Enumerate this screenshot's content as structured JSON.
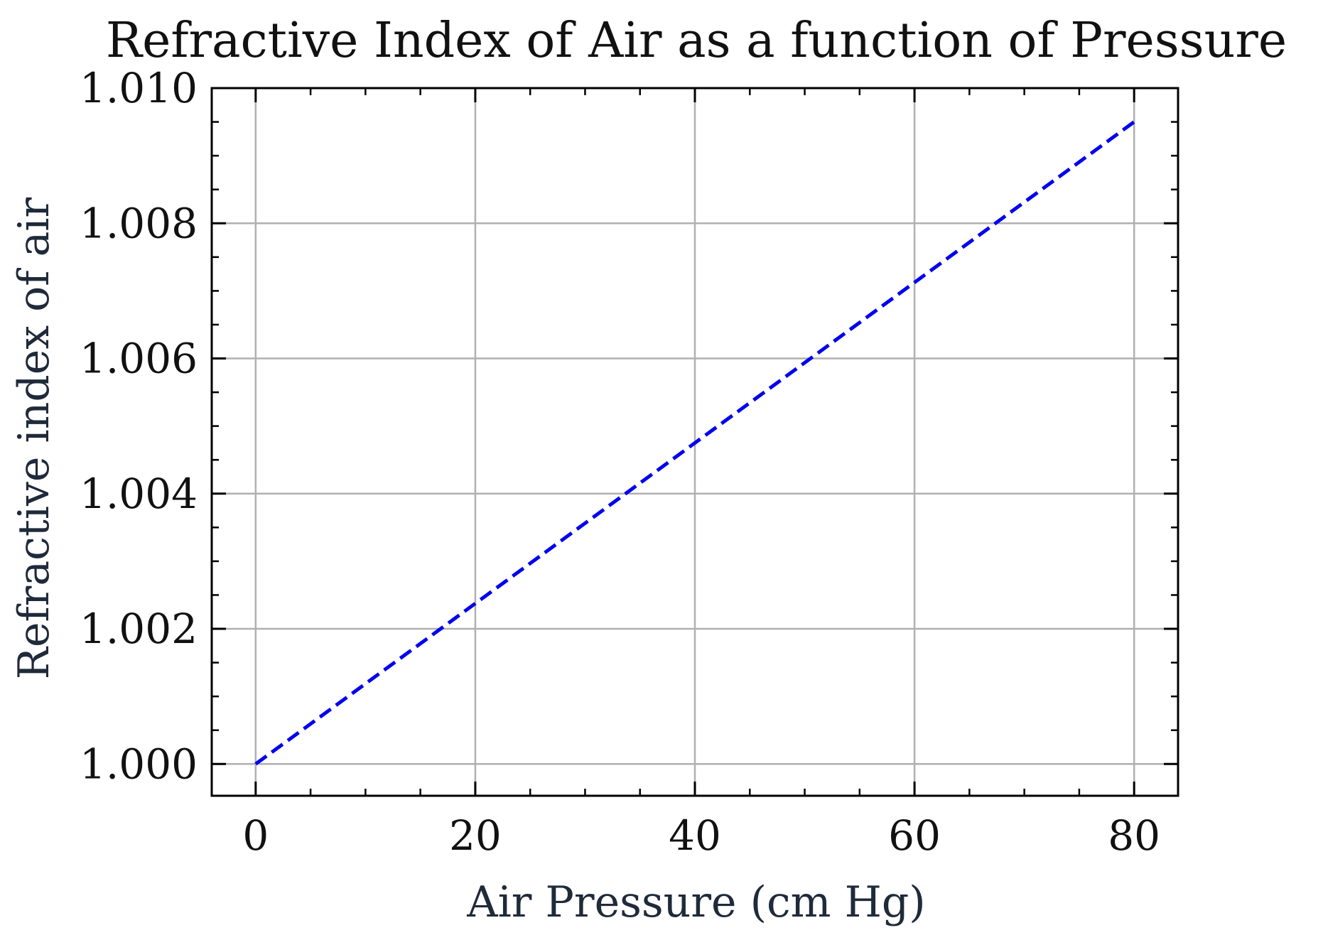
{
  "chart_data": {
    "type": "line",
    "title": "Refractive Index of Air as a function of Pressure",
    "xlabel": "Air Pressure (cm Hg)",
    "ylabel": "Refractive index of air",
    "xlim": [
      -4,
      84
    ],
    "ylim": [
      0.99953,
      1.01
    ],
    "x_ticks": [
      0,
      20,
      40,
      60,
      80
    ],
    "x_tick_labels": [
      "0",
      "20",
      "40",
      "60",
      "80"
    ],
    "y_ticks": [
      1.0,
      1.002,
      1.004,
      1.006,
      1.008,
      1.01
    ],
    "y_tick_labels": [
      "1.000",
      "1.002",
      "1.004",
      "1.006",
      "1.008",
      "1.010"
    ],
    "x_minor_step": 5,
    "y_minor_step": 0.0005,
    "grid": true,
    "legend": false,
    "series": [
      {
        "x": [
          0,
          80
        ],
        "values": [
          1.0,
          1.0095
        ],
        "color": "#0000ee",
        "line_style": "dashed"
      }
    ],
    "colors": {
      "grid": "#b0b0b0",
      "axes": "#000000",
      "line": "#0000ee"
    }
  }
}
